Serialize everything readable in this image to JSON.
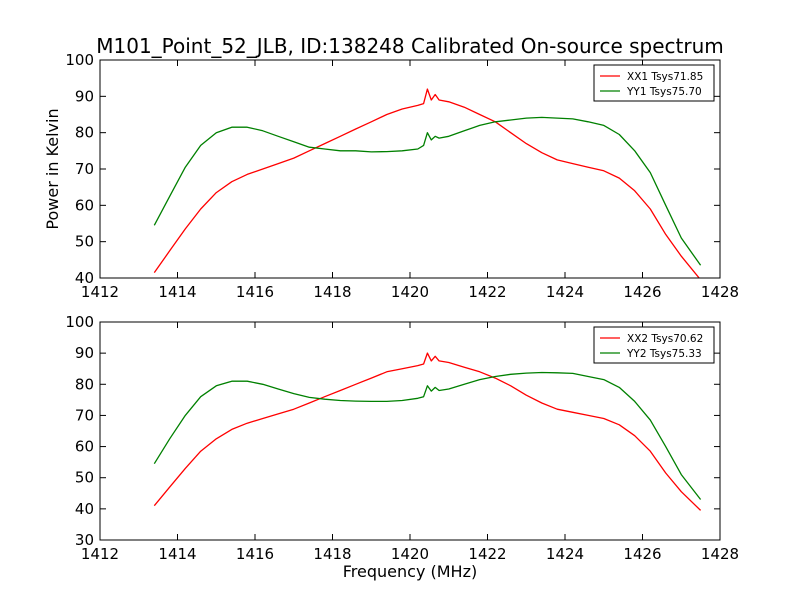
{
  "title": "M101_Point_52_JLB, ID:138248 Calibrated On-source spectrum",
  "xlabel": "Frequency (MHz)",
  "ylabel": "Power in Kelvin",
  "colors": {
    "xx": "#ff0000",
    "yy": "#008000",
    "axes": "#000000",
    "background": "#ffffff"
  },
  "chart_data": [
    {
      "type": "line",
      "xlim": [
        1412,
        1428
      ],
      "ylim": [
        40,
        100
      ],
      "xticks": [
        1412,
        1414,
        1416,
        1418,
        1420,
        1422,
        1424,
        1426,
        1428
      ],
      "yticks": [
        40,
        50,
        60,
        70,
        80,
        90,
        100
      ],
      "legend_position": "top-right",
      "grid": false,
      "series": [
        {
          "name": "XX1 Tsys71.85",
          "color": "#ff0000",
          "x": [
            1413.4,
            1413.8,
            1414.2,
            1414.6,
            1415.0,
            1415.4,
            1415.8,
            1416.2,
            1416.6,
            1417.0,
            1417.4,
            1417.8,
            1418.2,
            1418.6,
            1419.0,
            1419.4,
            1419.8,
            1420.2,
            1420.35,
            1420.45,
            1420.55,
            1420.65,
            1420.75,
            1421.0,
            1421.4,
            1421.8,
            1422.2,
            1422.6,
            1423.0,
            1423.4,
            1423.8,
            1424.2,
            1424.6,
            1425.0,
            1425.4,
            1425.8,
            1426.2,
            1426.6,
            1427.0,
            1427.5
          ],
          "y": [
            41.5,
            47.5,
            53.5,
            59.0,
            63.5,
            66.5,
            68.5,
            70.0,
            71.5,
            73.0,
            75.0,
            77.0,
            79.0,
            81.0,
            83.0,
            85.0,
            86.5,
            87.5,
            88.0,
            92.0,
            89.0,
            90.5,
            89.0,
            88.5,
            87.0,
            85.0,
            83.0,
            80.0,
            77.0,
            74.5,
            72.5,
            71.5,
            70.5,
            69.5,
            67.5,
            64.0,
            59.0,
            52.0,
            46.0,
            39.5
          ]
        },
        {
          "name": "YY1 Tsys75.70",
          "color": "#008000",
          "x": [
            1413.4,
            1413.8,
            1414.2,
            1414.6,
            1415.0,
            1415.4,
            1415.8,
            1416.2,
            1416.6,
            1417.0,
            1417.4,
            1417.8,
            1418.2,
            1418.6,
            1419.0,
            1419.4,
            1419.8,
            1420.2,
            1420.35,
            1420.45,
            1420.55,
            1420.65,
            1420.75,
            1421.0,
            1421.4,
            1421.8,
            1422.2,
            1422.6,
            1423.0,
            1423.4,
            1423.8,
            1424.2,
            1424.6,
            1425.0,
            1425.4,
            1425.8,
            1426.2,
            1426.6,
            1427.0,
            1427.5
          ],
          "y": [
            54.5,
            62.5,
            70.5,
            76.5,
            80.0,
            81.5,
            81.5,
            80.5,
            79.0,
            77.5,
            76.0,
            75.5,
            75.0,
            75.0,
            74.7,
            74.8,
            75.0,
            75.5,
            76.5,
            80.0,
            78.0,
            79.0,
            78.5,
            79.0,
            80.5,
            82.0,
            83.0,
            83.5,
            84.0,
            84.2,
            84.0,
            83.8,
            83.0,
            82.0,
            79.5,
            75.0,
            69.0,
            60.0,
            51.0,
            43.5
          ]
        }
      ]
    },
    {
      "type": "line",
      "xlim": [
        1412,
        1428
      ],
      "ylim": [
        30,
        100
      ],
      "xticks": [
        1412,
        1414,
        1416,
        1418,
        1420,
        1422,
        1424,
        1426,
        1428
      ],
      "yticks": [
        30,
        40,
        50,
        60,
        70,
        80,
        90,
        100
      ],
      "legend_position": "top-right",
      "grid": false,
      "series": [
        {
          "name": "XX2 Tsys70.62",
          "color": "#ff0000",
          "x": [
            1413.4,
            1413.8,
            1414.2,
            1414.6,
            1415.0,
            1415.4,
            1415.8,
            1416.2,
            1416.6,
            1417.0,
            1417.4,
            1417.8,
            1418.2,
            1418.6,
            1419.0,
            1419.4,
            1419.8,
            1420.2,
            1420.35,
            1420.45,
            1420.55,
            1420.65,
            1420.75,
            1421.0,
            1421.4,
            1421.8,
            1422.2,
            1422.6,
            1423.0,
            1423.4,
            1423.8,
            1424.2,
            1424.6,
            1425.0,
            1425.4,
            1425.8,
            1426.2,
            1426.6,
            1427.0,
            1427.5
          ],
          "y": [
            41.0,
            47.0,
            53.0,
            58.5,
            62.5,
            65.5,
            67.5,
            69.0,
            70.5,
            72.0,
            74.0,
            76.0,
            78.0,
            80.0,
            82.0,
            84.0,
            85.0,
            86.0,
            86.5,
            90.0,
            87.5,
            89.0,
            87.5,
            87.0,
            85.5,
            84.0,
            82.0,
            79.5,
            76.5,
            74.0,
            72.0,
            71.0,
            70.0,
            69.0,
            67.0,
            63.5,
            58.5,
            51.5,
            45.5,
            39.5
          ]
        },
        {
          "name": "YY2 Tsys75.33",
          "color": "#008000",
          "x": [
            1413.4,
            1413.8,
            1414.2,
            1414.6,
            1415.0,
            1415.4,
            1415.8,
            1416.2,
            1416.6,
            1417.0,
            1417.4,
            1417.8,
            1418.2,
            1418.6,
            1419.0,
            1419.4,
            1419.8,
            1420.2,
            1420.35,
            1420.45,
            1420.55,
            1420.65,
            1420.75,
            1421.0,
            1421.4,
            1421.8,
            1422.2,
            1422.6,
            1423.0,
            1423.4,
            1423.8,
            1424.2,
            1424.6,
            1425.0,
            1425.4,
            1425.8,
            1426.2,
            1426.6,
            1427.0,
            1427.5
          ],
          "y": [
            54.5,
            62.5,
            70.0,
            76.0,
            79.5,
            81.0,
            81.0,
            80.0,
            78.5,
            77.0,
            75.8,
            75.2,
            74.8,
            74.6,
            74.5,
            74.5,
            74.8,
            75.5,
            76.0,
            79.5,
            77.8,
            79.0,
            78.0,
            78.5,
            80.0,
            81.5,
            82.5,
            83.2,
            83.6,
            83.8,
            83.7,
            83.5,
            82.5,
            81.5,
            79.0,
            74.5,
            68.5,
            60.0,
            51.0,
            43.0
          ]
        }
      ]
    }
  ]
}
